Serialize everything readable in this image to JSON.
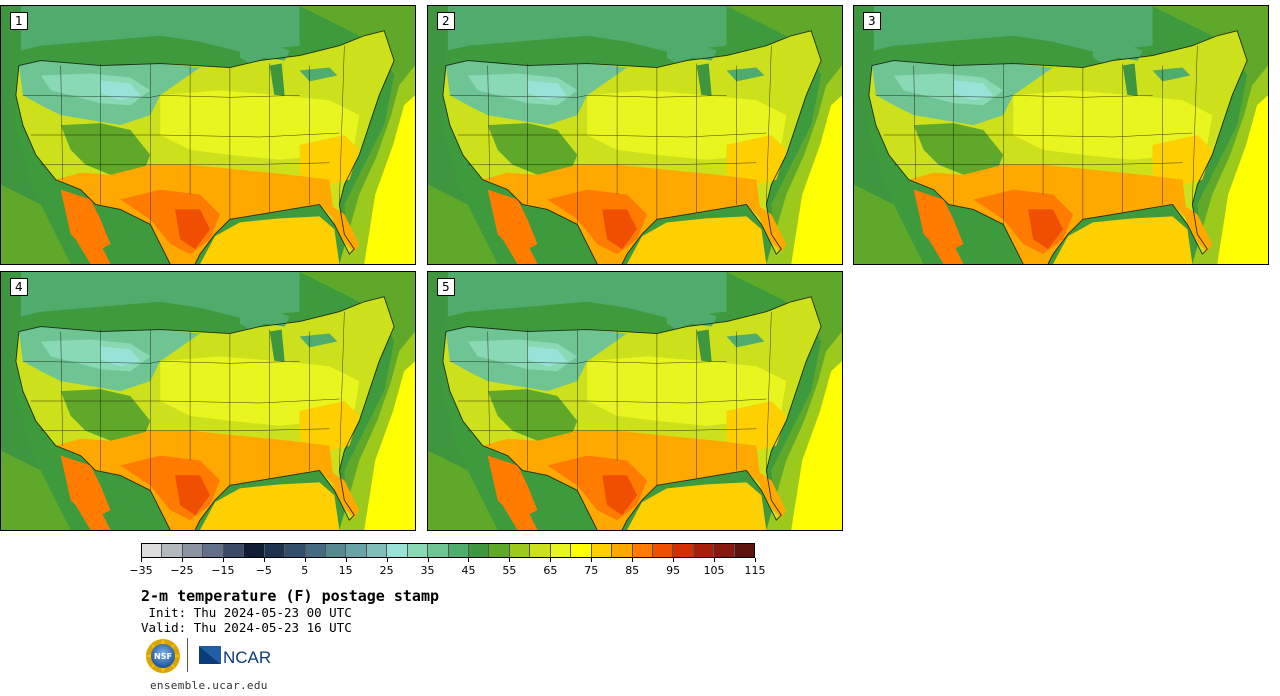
{
  "panels": [
    {
      "label": "1"
    },
    {
      "label": "2"
    },
    {
      "label": "3"
    },
    {
      "label": "4"
    },
    {
      "label": "5"
    }
  ],
  "colorbar": {
    "colors": [
      "#dedede",
      "#b4b9c0",
      "#8c94a1",
      "#62708a",
      "#3b4a66",
      "#101c33",
      "#1e3350",
      "#324e6c",
      "#456b82",
      "#56888f",
      "#6aa3a7",
      "#81bdba",
      "#98e2d8",
      "#88d9b4",
      "#6fc493",
      "#50ac6c",
      "#3e963f",
      "#5fa82a",
      "#9bc91c",
      "#cde01c",
      "#e8f51e",
      "#ffff00",
      "#ffd000",
      "#ffa800",
      "#ff7c00",
      "#f04e00",
      "#d22e00",
      "#a81e0c",
      "#861a10",
      "#5e140e"
    ],
    "tick_labels": [
      "−35",
      "−25",
      "−15",
      "−5",
      "5",
      "15",
      "25",
      "35",
      "45",
      "55",
      "65",
      "75",
      "85",
      "95",
      "105",
      "115"
    ]
  },
  "title": "2-m temperature (F) postage stamp",
  "init_line": " Init: Thu 2024-05-23 00 UTC",
  "valid_line": "Valid: Thu 2024-05-23 16 UTC",
  "logos": {
    "nsf": "NSF",
    "ncar": "NCAR"
  },
  "site": "ensemble.ucar.edu",
  "colors": {
    "ocean_far": "#3d9a3d",
    "ocean_gulf": "#ffd000",
    "ocean_atlantic": "#ffff00",
    "land_north": "#6fc493",
    "land_mid": "#cde01c",
    "land_south": "#ff7c00"
  }
}
